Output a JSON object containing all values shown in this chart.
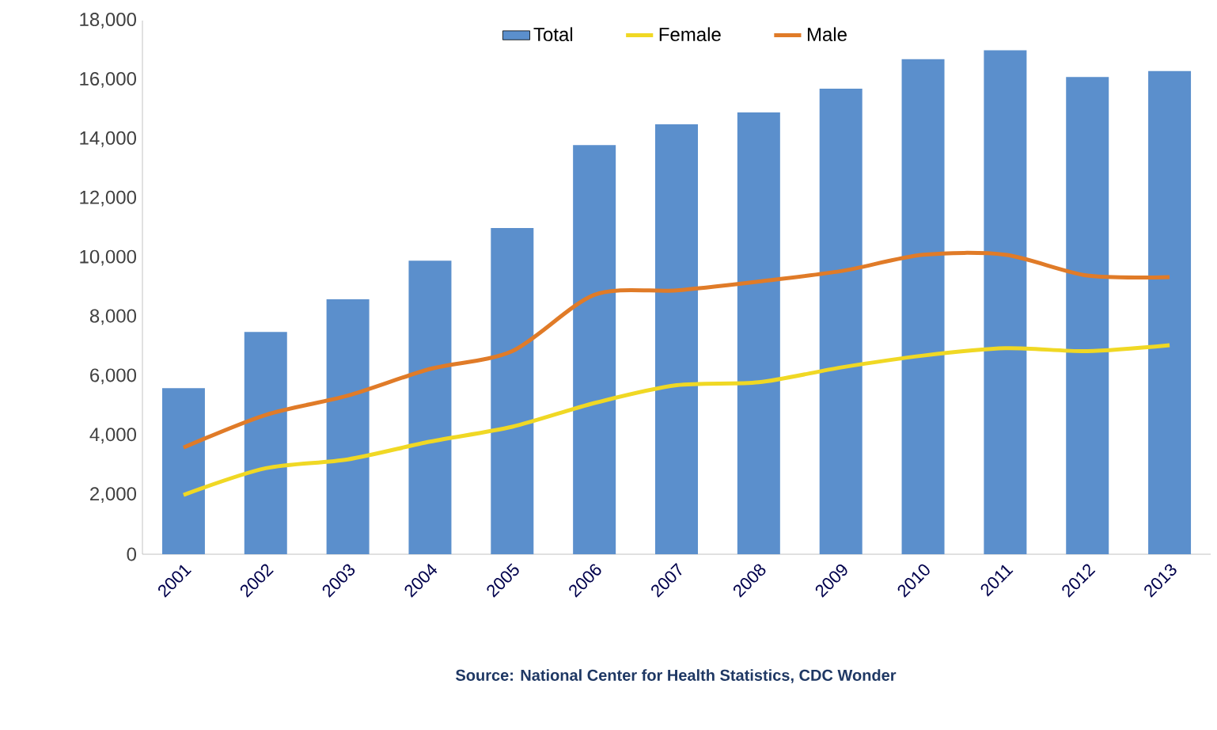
{
  "chart_data": {
    "type": "bar",
    "categories": [
      "2001",
      "2002",
      "2003",
      "2004",
      "2005",
      "2006",
      "2007",
      "2008",
      "2009",
      "2010",
      "2011",
      "2012",
      "2013"
    ],
    "series": [
      {
        "name": "Total",
        "color": "#5b8fcc",
        "values": [
          5600,
          7500,
          8600,
          9900,
          11000,
          13800,
          14500,
          14900,
          15700,
          16700,
          17000,
          16100,
          16300
        ]
      },
      {
        "name": "Female",
        "type": "line",
        "color": "#f0d824",
        "values": [
          2000,
          2900,
          3200,
          3800,
          4300,
          5100,
          5700,
          5800,
          6300,
          6700,
          6950,
          6850,
          7050
        ]
      },
      {
        "name": "Male",
        "type": "line",
        "color": "#e07b28",
        "values": [
          3600,
          4700,
          5350,
          6250,
          6850,
          8750,
          8900,
          9200,
          9550,
          10100,
          10100,
          9400,
          9350
        ]
      }
    ],
    "ylim": [
      0,
      18000
    ],
    "yticks": [
      {
        "value": 0,
        "label": "0"
      },
      {
        "value": 2000,
        "label": "2,000"
      },
      {
        "value": 4000,
        "label": "4,000"
      },
      {
        "value": 6000,
        "label": "6,000"
      },
      {
        "value": 8000,
        "label": "8,000"
      },
      {
        "value": 10000,
        "label": "10,000"
      },
      {
        "value": 12000,
        "label": "12,000"
      },
      {
        "value": 14000,
        "label": "14,000"
      },
      {
        "value": 16000,
        "label": "16,000"
      },
      {
        "value": 18000,
        "label": "18,000"
      }
    ],
    "legend": "top",
    "marker": "none",
    "line_style": "solid",
    "annotations": [
      "Source: National Center for Health Statistics, CDC Wonder"
    ]
  }
}
